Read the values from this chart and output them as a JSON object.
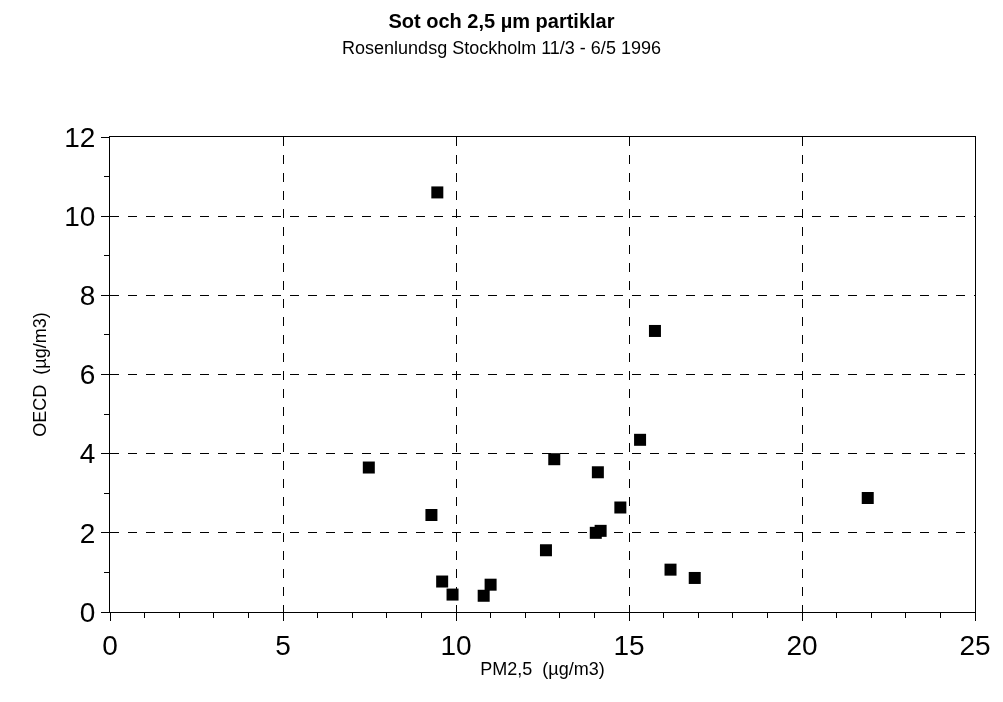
{
  "chart_data": {
    "type": "scatter",
    "title": "Sot och 2,5 µm partiklar",
    "subtitle": "Rosenlundsg Stockholm 11/3 - 6/5 1996",
    "xlabel": "PM2,5  (µg/m3)",
    "ylabel": "OECD  (µg/m3)",
    "x": [
      9.46,
      7.48,
      9.29,
      9.6,
      9.9,
      11.0,
      10.8,
      15.75,
      15.32,
      12.84,
      14.1,
      14.75,
      21.9,
      14.04,
      14.18,
      12.6,
      16.2,
      16.9
    ],
    "series": [
      {
        "color": "#000000",
        "values": [
          10.6,
          3.65,
          2.45,
          0.77,
          0.44,
          0.69,
          0.41,
          7.1,
          4.35,
          3.86,
          3.53,
          2.64,
          2.88,
          2.0,
          2.05,
          1.56,
          1.07,
          0.86
        ]
      }
    ],
    "xlim": [
      0,
      25
    ],
    "xticks": [
      0,
      5,
      10,
      15,
      20,
      25
    ],
    "ylim": [
      0,
      12
    ],
    "yticks": [
      0,
      2,
      4,
      6,
      8,
      10,
      12
    ],
    "grid": true,
    "marker": "square"
  }
}
